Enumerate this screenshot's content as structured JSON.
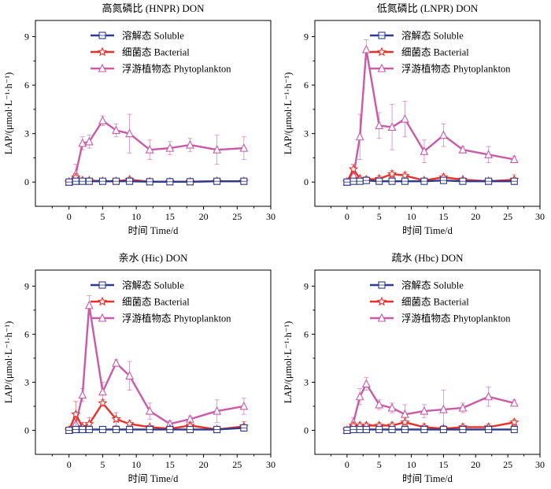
{
  "chart_data": [
    {
      "type": "line",
      "title": "高氮磷比 (HNPR) DON",
      "xlabel": "时间 Time/d",
      "ylabel": "LAP/(μmol·L⁻¹·h⁻¹)",
      "xlim": [
        -5,
        30
      ],
      "ylim": [
        -1.5,
        10
      ],
      "xticks": [
        "0",
        "5",
        "10",
        "15",
        "20",
        "25",
        "30"
      ],
      "yticks": [
        "0",
        "3",
        "6",
        "9"
      ],
      "legend_position": "top-right",
      "x": [
        0,
        1,
        2,
        3,
        5,
        7,
        9,
        12,
        15,
        18,
        22,
        26
      ],
      "series": [
        {
          "name": "溶解态 Soluble",
          "color": "#2e3a8c",
          "marker": "square",
          "values": [
            0,
            0.05,
            0.05,
            0.05,
            0.05,
            0.05,
            0.05,
            0.02,
            0.02,
            0.02,
            0.05,
            0.05
          ],
          "errors": [
            0.1,
            0.1,
            0.1,
            0.1,
            0.1,
            0.1,
            0.1,
            0.1,
            0.1,
            0.1,
            0.1,
            0.1
          ]
        },
        {
          "name": "细菌态 Bacterial",
          "color": "#e8302a",
          "marker": "star",
          "values": [
            0,
            0.3,
            0.1,
            0.1,
            0.05,
            0.05,
            0.15,
            0.02,
            0.02,
            0.02,
            0.05,
            0.05
          ],
          "errors": [
            0.1,
            0.2,
            0.1,
            0.1,
            0.1,
            0.1,
            0.15,
            0.1,
            0.1,
            0.1,
            0.1,
            0.1
          ]
        },
        {
          "name": "浮游植物态 Phytoplankton",
          "color": "#c85aa8",
          "marker": "triangle",
          "values": [
            0,
            0.5,
            2.4,
            2.5,
            3.8,
            3.2,
            3.0,
            2.0,
            2.1,
            2.3,
            2.0,
            2.1
          ],
          "errors": [
            0.2,
            0.6,
            0.4,
            0.4,
            0.3,
            0.4,
            1.2,
            0.6,
            0.4,
            0.4,
            0.9,
            0.7
          ]
        }
      ]
    },
    {
      "type": "line",
      "title": "低氮磷比 (LNPR) DON",
      "xlabel": "时间 Time/d",
      "ylabel": "LAP/(μmol·L⁻¹·h⁻¹)",
      "xlim": [
        -5,
        30
      ],
      "ylim": [
        -1.5,
        10
      ],
      "xticks": [
        "0",
        "5",
        "10",
        "15",
        "20",
        "25",
        "30"
      ],
      "yticks": [
        "0",
        "3",
        "6",
        "9"
      ],
      "legend_position": "top-right",
      "x": [
        0,
        1,
        2,
        3,
        5,
        7,
        9,
        12,
        15,
        18,
        22,
        26
      ],
      "series": [
        {
          "name": "溶解态 Soluble",
          "color": "#2e3a8c",
          "marker": "square",
          "values": [
            0,
            0.05,
            0.05,
            0.1,
            0.05,
            0.05,
            0.05,
            0.05,
            0.1,
            0.05,
            0.05,
            0.05
          ],
          "errors": [
            0.1,
            0.1,
            0.1,
            0.1,
            0.1,
            0.1,
            0.1,
            0.1,
            0.1,
            0.1,
            0.1,
            0.1
          ]
        },
        {
          "name": "细菌态 Bacterial",
          "color": "#e8302a",
          "marker": "star",
          "values": [
            0,
            0.8,
            0.2,
            0.15,
            0.2,
            0.5,
            0.4,
            0.1,
            0.3,
            0.15,
            0.05,
            0.15
          ],
          "errors": [
            0.1,
            0.3,
            0.2,
            0.2,
            0.2,
            0.2,
            0.2,
            0.1,
            0.2,
            0.1,
            0.1,
            0.3
          ]
        },
        {
          "name": "浮游植物态 Phytoplankton",
          "color": "#c85aa8",
          "marker": "triangle",
          "values": [
            0,
            0.4,
            2.8,
            8.2,
            3.5,
            3.4,
            3.9,
            1.9,
            2.9,
            2.0,
            1.7,
            1.4
          ],
          "errors": [
            0.2,
            0.3,
            1.4,
            0.6,
            0.8,
            1.4,
            1.1,
            0.7,
            0.7,
            0.2,
            0.5,
            0.2
          ]
        }
      ]
    },
    {
      "type": "line",
      "title": "亲水 (Hic) DON",
      "xlabel": "时间 Time/d",
      "ylabel": "LAP/(μmol·L⁻¹·h⁻¹)",
      "xlim": [
        -5,
        30
      ],
      "ylim": [
        -1.5,
        10
      ],
      "xticks": [
        "0",
        "5",
        "10",
        "15",
        "20",
        "25",
        "30"
      ],
      "yticks": [
        "0",
        "3",
        "6",
        "9"
      ],
      "legend_position": "top-right",
      "x": [
        0,
        1,
        2,
        3,
        5,
        7,
        9,
        12,
        15,
        18,
        22,
        26
      ],
      "series": [
        {
          "name": "溶解态 Soluble",
          "color": "#2e3a8c",
          "marker": "square",
          "values": [
            0,
            0.05,
            0.05,
            0.05,
            0.05,
            0.05,
            0.05,
            0.05,
            0.05,
            0.05,
            0.05,
            0.15
          ],
          "errors": [
            0.1,
            0.1,
            0.1,
            0.1,
            0.1,
            0.1,
            0.1,
            0.1,
            0.1,
            0.1,
            0.1,
            0.2
          ]
        },
        {
          "name": "细菌态 Bacterial",
          "color": "#e8302a",
          "marker": "star",
          "values": [
            0,
            1.0,
            0.2,
            0.4,
            1.7,
            0.7,
            0.4,
            0.2,
            0.1,
            0.3,
            0.05,
            0.25
          ],
          "errors": [
            0.1,
            0.8,
            0.3,
            0.4,
            0.2,
            0.4,
            0.2,
            0.1,
            0.1,
            0.1,
            0.1,
            0.3
          ]
        },
        {
          "name": "浮游植物态 Phytoplankton",
          "color": "#c85aa8",
          "marker": "triangle",
          "values": [
            0,
            0.4,
            2.2,
            7.8,
            2.4,
            4.2,
            3.4,
            1.2,
            0.4,
            0.7,
            1.2,
            1.5
          ],
          "errors": [
            0.2,
            0.3,
            0.4,
            0.6,
            0.6,
            0.2,
            0.9,
            0.5,
            0.2,
            0.2,
            0.7,
            0.5
          ]
        }
      ]
    },
    {
      "type": "line",
      "title": "疏水 (Hbc) DON",
      "xlabel": "时间 Time/d",
      "ylabel": "LAP/(μmol·L⁻¹·h⁻¹)",
      "xlim": [
        -5,
        30
      ],
      "ylim": [
        -1.5,
        10
      ],
      "xticks": [
        "0",
        "5",
        "10",
        "15",
        "20",
        "25",
        "30"
      ],
      "yticks": [
        "0",
        "3",
        "6",
        "9"
      ],
      "legend_position": "top-right",
      "x": [
        0,
        1,
        2,
        3,
        5,
        7,
        9,
        12,
        15,
        18,
        22,
        26
      ],
      "series": [
        {
          "name": "溶解态 Soluble",
          "color": "#2e3a8c",
          "marker": "square",
          "values": [
            0,
            0.05,
            0.05,
            0.05,
            0.05,
            0.05,
            0.05,
            0.05,
            0.05,
            0.05,
            0.05,
            0.05
          ],
          "errors": [
            0.1,
            0.1,
            0.1,
            0.1,
            0.1,
            0.1,
            0.1,
            0.1,
            0.1,
            0.1,
            0.1,
            0.1
          ]
        },
        {
          "name": "细菌态 Bacterial",
          "color": "#e8302a",
          "marker": "star",
          "values": [
            0,
            0.3,
            0.3,
            0.3,
            0.3,
            0.3,
            0.5,
            0.2,
            0.1,
            0.2,
            0.2,
            0.5
          ],
          "errors": [
            0.1,
            0.2,
            0.2,
            0.2,
            0.2,
            0.2,
            0.3,
            0.2,
            0.2,
            0.2,
            0.2,
            0.2
          ]
        },
        {
          "name": "浮游植物态 Phytoplankton",
          "color": "#c85aa8",
          "marker": "triangle",
          "values": [
            0,
            0.5,
            2.1,
            2.9,
            1.6,
            1.4,
            1.0,
            1.2,
            1.3,
            1.4,
            2.1,
            1.7
          ],
          "errors": [
            0.2,
            0.3,
            0.5,
            0.4,
            0.3,
            0.3,
            0.6,
            0.4,
            1.2,
            0.3,
            0.6,
            0.2
          ]
        }
      ]
    }
  ]
}
